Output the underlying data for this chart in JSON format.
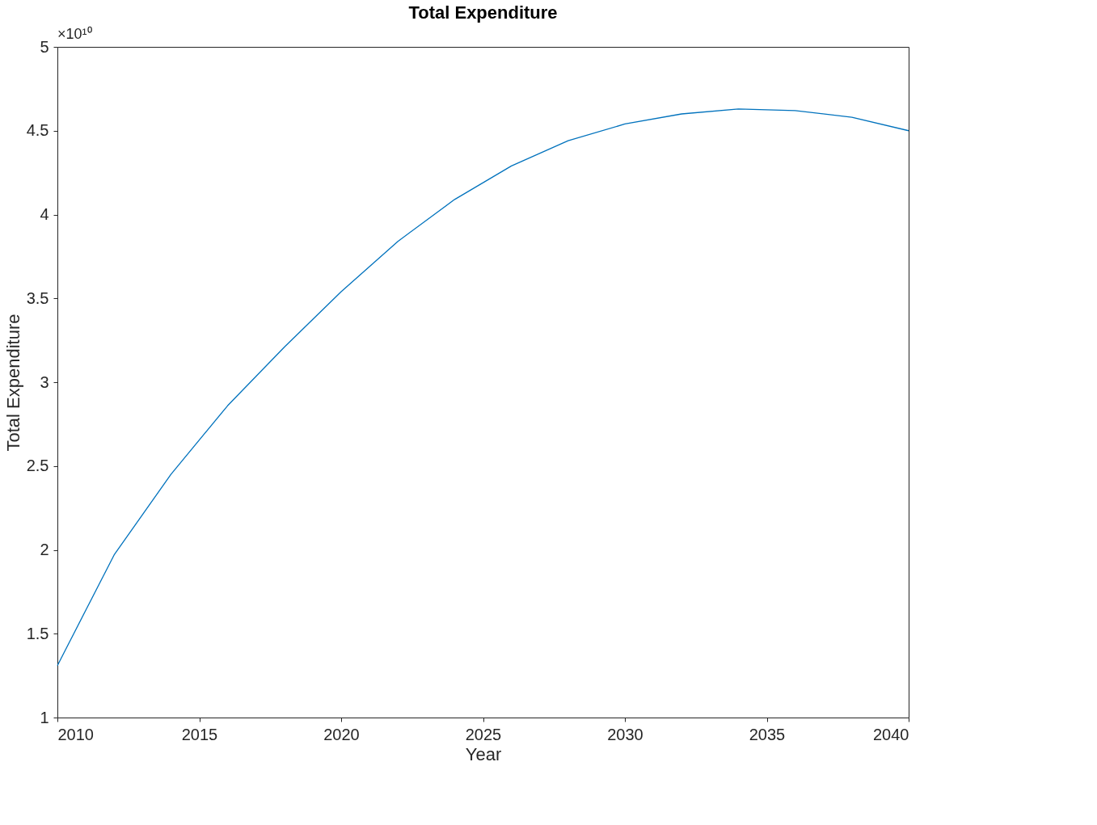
{
  "chart_data": {
    "type": "line",
    "title": "Total Expenditure",
    "xlabel": "Year",
    "ylabel": "Total Expenditure",
    "annotations": [
      "×10¹⁰"
    ],
    "x": [
      2010,
      2012,
      2014,
      2016,
      2018,
      2020,
      2022,
      2024,
      2026,
      2028,
      2030,
      2032,
      2034,
      2036,
      2038,
      2040
    ],
    "series": [
      {
        "color": "#0072bd",
        "values": [
          1.31,
          1.97,
          2.45,
          2.86,
          3.21,
          3.54,
          3.84,
          4.09,
          4.29,
          4.44,
          4.54,
          4.6,
          4.63,
          4.62,
          4.58,
          4.5
        ]
      }
    ],
    "xlim": [
      2010,
      2040
    ],
    "xticks": [
      2010,
      2015,
      2020,
      2025,
      2030,
      2035,
      2040
    ],
    "ylim": [
      1,
      5
    ],
    "yticks": [
      1,
      1.5,
      2,
      2.5,
      3,
      3.5,
      4,
      4.5,
      5
    ],
    "grid": false,
    "marker": "none",
    "line_style": "solid"
  }
}
